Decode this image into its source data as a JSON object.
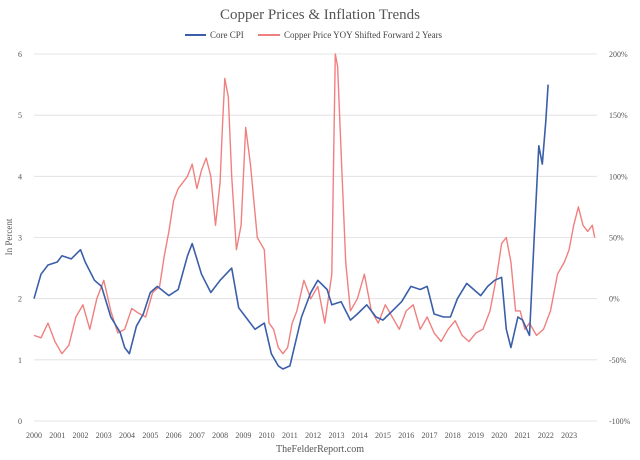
{
  "chart_data": {
    "type": "line",
    "title": "Copper Prices & Inflation Trends",
    "footer": "TheFelderReport.com",
    "ylabel": "In Percent",
    "ylim_left": [
      0,
      6
    ],
    "ylim_right": [
      -100,
      200
    ],
    "xlim": [
      2000,
      2024.2
    ],
    "left_ticks": [
      "0",
      "1",
      "2",
      "3",
      "4",
      "5",
      "6"
    ],
    "right_ticks": [
      "-100%",
      "-50%",
      "0%",
      "50%",
      "100%",
      "150%",
      "200%"
    ],
    "x_ticks": [
      "2000",
      "2001",
      "2002",
      "2003",
      "2004",
      "2005",
      "2006",
      "2007",
      "2008",
      "2009",
      "2010",
      "2011",
      "2012",
      "2013",
      "2014",
      "2015",
      "2016",
      "2017",
      "2018",
      "2019",
      "2020",
      "2021",
      "2022",
      "2023"
    ],
    "series": [
      {
        "name": "Core CPI",
        "axis": "left",
        "color": "#3a5fa8",
        "x": [
          2000.0,
          2000.3,
          2000.6,
          2001.0,
          2001.2,
          2001.6,
          2002.0,
          2002.2,
          2002.6,
          2002.9,
          2003.3,
          2003.7,
          2003.9,
          2004.1,
          2004.4,
          2004.7,
          2005.0,
          2005.3,
          2005.8,
          2006.2,
          2006.6,
          2006.8,
          2007.2,
          2007.6,
          2008.0,
          2008.5,
          2008.8,
          2009.1,
          2009.5,
          2009.9,
          2010.2,
          2010.5,
          2010.7,
          2011.0,
          2011.5,
          2011.9,
          2012.2,
          2012.6,
          2012.8,
          2013.2,
          2013.6,
          2013.9,
          2014.3,
          2014.7,
          2015.0,
          2015.4,
          2015.8,
          2016.2,
          2016.6,
          2016.9,
          2017.2,
          2017.6,
          2017.9,
          2018.2,
          2018.6,
          2018.9,
          2019.2,
          2019.5,
          2019.8,
          2020.1,
          2020.3,
          2020.5,
          2020.8,
          2021.0,
          2021.3,
          2021.5,
          2021.7,
          2021.85,
          2022.0,
          2022.1
        ],
        "values": [
          2.0,
          2.4,
          2.55,
          2.6,
          2.7,
          2.65,
          2.8,
          2.6,
          2.3,
          2.2,
          1.7,
          1.45,
          1.2,
          1.1,
          1.55,
          1.75,
          2.1,
          2.2,
          2.05,
          2.15,
          2.7,
          2.9,
          2.4,
          2.1,
          2.3,
          2.5,
          1.85,
          1.7,
          1.5,
          1.6,
          1.1,
          0.9,
          0.85,
          0.9,
          1.7,
          2.1,
          2.3,
          2.15,
          1.9,
          1.95,
          1.65,
          1.75,
          1.9,
          1.7,
          1.65,
          1.8,
          1.95,
          2.2,
          2.15,
          2.2,
          1.75,
          1.7,
          1.7,
          2.0,
          2.25,
          2.15,
          2.05,
          2.2,
          2.3,
          2.35,
          1.5,
          1.2,
          1.7,
          1.65,
          1.4,
          3.0,
          4.5,
          4.2,
          4.9,
          5.5
        ]
      },
      {
        "name": "Copper Price YOY Shifted Forward 2 Years",
        "axis": "right",
        "color": "#f08080",
        "x": [
          2000.0,
          2000.3,
          2000.6,
          2000.9,
          2001.2,
          2001.5,
          2001.8,
          2002.1,
          2002.4,
          2002.7,
          2003.0,
          2003.3,
          2003.6,
          2003.9,
          2004.2,
          2004.5,
          2004.8,
          2005.1,
          2005.4,
          2005.6,
          2005.8,
          2006.0,
          2006.2,
          2006.4,
          2006.6,
          2006.8,
          2007.0,
          2007.2,
          2007.4,
          2007.6,
          2007.8,
          2008.0,
          2008.1,
          2008.2,
          2008.35,
          2008.5,
          2008.7,
          2008.9,
          2009.1,
          2009.3,
          2009.6,
          2009.9,
          2010.1,
          2010.3,
          2010.5,
          2010.7,
          2010.9,
          2011.1,
          2011.3,
          2011.6,
          2011.9,
          2012.2,
          2012.5,
          2012.8,
          2012.95,
          2013.05,
          2013.2,
          2013.4,
          2013.6,
          2013.9,
          2014.2,
          2014.5,
          2014.8,
          2015.1,
          2015.4,
          2015.7,
          2016.0,
          2016.3,
          2016.6,
          2016.9,
          2017.2,
          2017.5,
          2017.8,
          2018.1,
          2018.4,
          2018.7,
          2019.0,
          2019.3,
          2019.6,
          2019.9,
          2020.1,
          2020.3,
          2020.5,
          2020.7,
          2020.9,
          2021.1,
          2021.3,
          2021.6,
          2021.9,
          2022.2,
          2022.5,
          2022.8,
          2023.0,
          2023.2,
          2023.4,
          2023.6,
          2023.8,
          2024.0,
          2024.1
        ],
        "values": [
          -30,
          -32,
          -20,
          -35,
          -45,
          -38,
          -15,
          -5,
          -25,
          0,
          15,
          -10,
          -28,
          -25,
          -8,
          -12,
          -15,
          5,
          10,
          35,
          55,
          80,
          90,
          95,
          100,
          110,
          90,
          105,
          115,
          100,
          60,
          95,
          140,
          180,
          165,
          100,
          40,
          60,
          140,
          110,
          50,
          40,
          -20,
          -25,
          -40,
          -45,
          -40,
          -20,
          -10,
          15,
          0,
          10,
          -20,
          20,
          200,
          190,
          120,
          30,
          -10,
          0,
          20,
          -10,
          -20,
          -5,
          -15,
          -25,
          -10,
          -5,
          -25,
          -15,
          -28,
          -35,
          -25,
          -18,
          -30,
          -35,
          -28,
          -25,
          -10,
          20,
          45,
          50,
          30,
          -10,
          -10,
          -25,
          -20,
          -30,
          -25,
          -10,
          20,
          30,
          40,
          60,
          75,
          60,
          55,
          60,
          50
        ]
      }
    ]
  }
}
